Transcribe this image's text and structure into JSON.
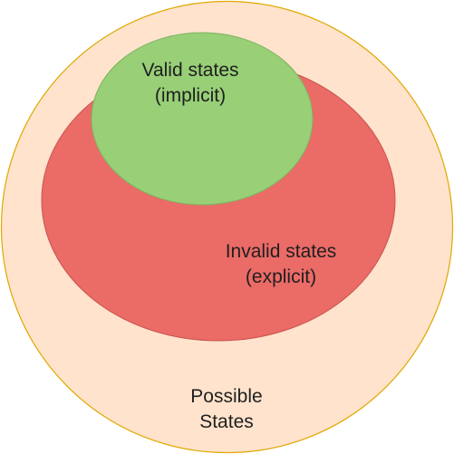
{
  "diagram": {
    "regions": [
      {
        "id": "possible",
        "lines": [
          "Possible",
          "States"
        ],
        "fill": "#ffe3cc",
        "stroke": "#e0a800"
      },
      {
        "id": "invalid",
        "lines": [
          "Invalid states",
          "(explicit)"
        ],
        "fill": "#eb6b67",
        "stroke": "#c8524d"
      },
      {
        "id": "valid",
        "lines": [
          "Valid states",
          "(implicit)"
        ],
        "fill": "#98cf77",
        "stroke": "#7fb35f"
      }
    ]
  }
}
